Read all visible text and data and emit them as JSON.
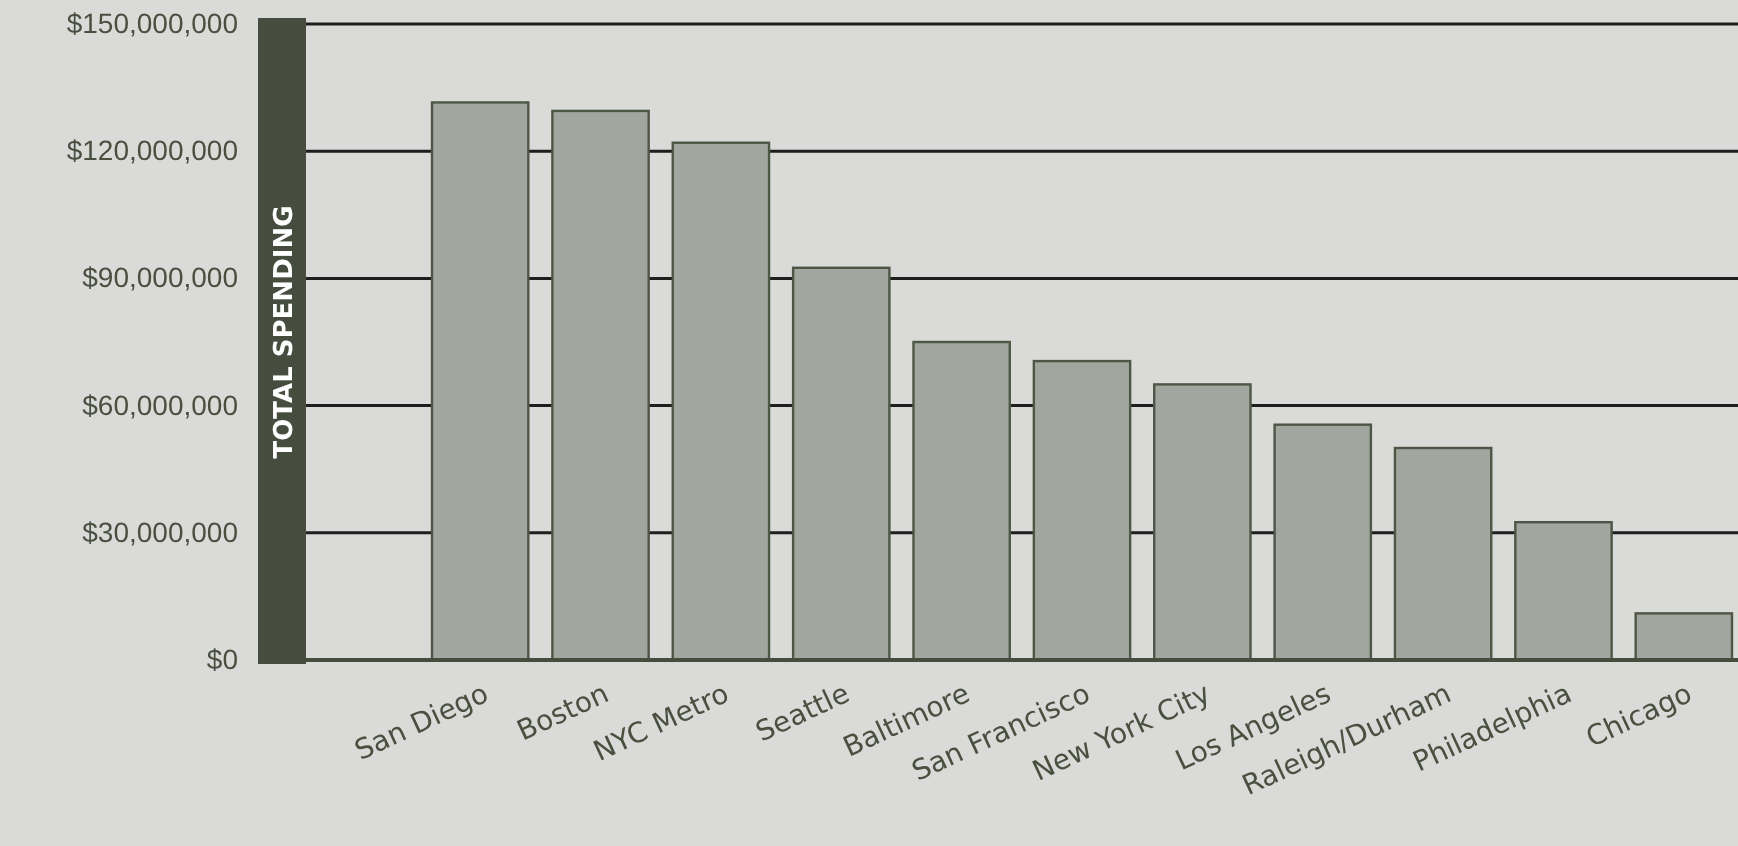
{
  "chart_data": {
    "type": "bar",
    "ylabel": "TOTAL SPENDING",
    "categories": [
      "San Diego",
      "Boston",
      "NYC Metro",
      "Seattle",
      "Baltimore",
      "San Francisco",
      "New York City",
      "Los Angeles",
      "Raleigh/Durham",
      "Philadelphia",
      "Chicago"
    ],
    "values": [
      131500000,
      129500000,
      122000000,
      92500000,
      75000000,
      70500000,
      65000000,
      55500000,
      50000000,
      32500000,
      11000000
    ],
    "color": "#a2a69e",
    "ylim": [
      0,
      150000000
    ],
    "yticks": [
      {
        "value": 0,
        "label": "$0"
      },
      {
        "value": 30000000,
        "label": "$30,000,000"
      },
      {
        "value": 60000000,
        "label": "$60,000,000"
      },
      {
        "value": 90000000,
        "label": "$90,000,000"
      },
      {
        "value": 120000000,
        "label": "$120,000,000"
      },
      {
        "value": 150000000,
        "label": "$150,000,000"
      }
    ],
    "grid": "y"
  }
}
